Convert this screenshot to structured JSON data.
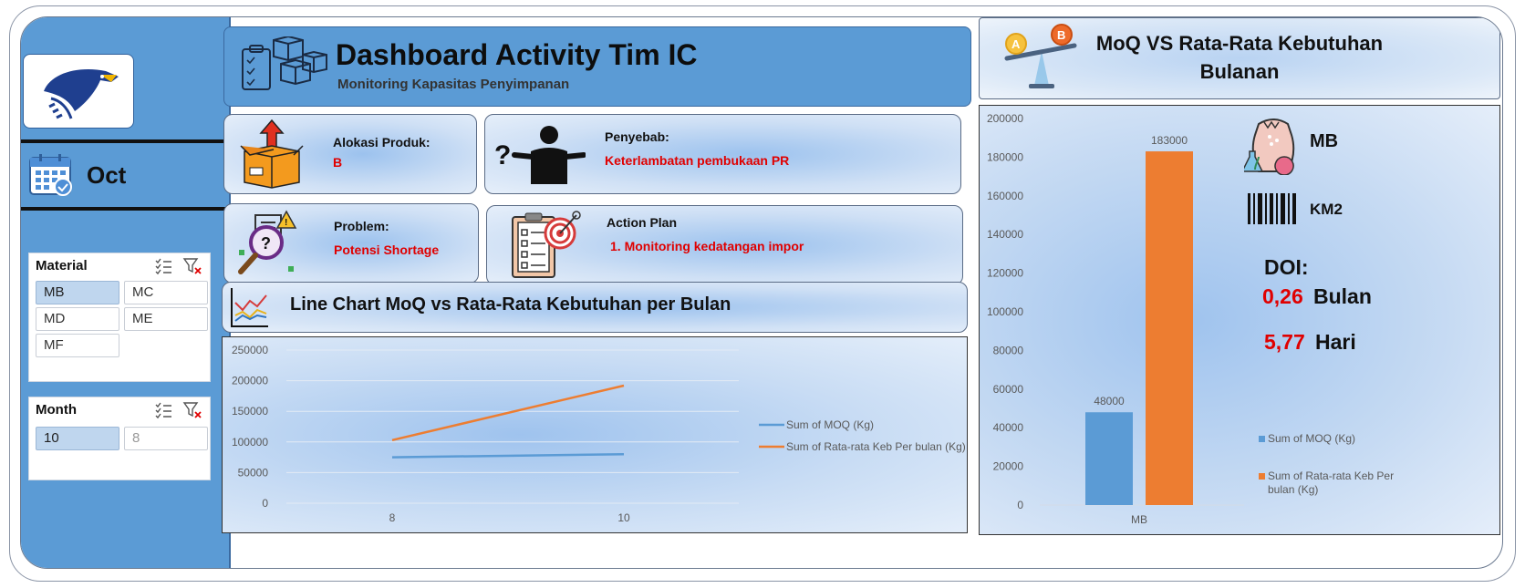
{
  "month": {
    "label": "Oct"
  },
  "slicers": {
    "material": {
      "title": "Material",
      "items": [
        "MB",
        "MC",
        "MD",
        "ME",
        "MF"
      ],
      "selected": "MB"
    },
    "month": {
      "title": "Month",
      "items": [
        "10",
        "8"
      ],
      "selected": "10"
    }
  },
  "header": {
    "title": "Dashboard Activity Tim IC",
    "subtitle": "Monitoring Kapasitas Penyimpanan"
  },
  "cards": {
    "alokasi": {
      "label": "Alokasi Produk:",
      "value": "B"
    },
    "penyebab": {
      "label": "Penyebab:",
      "value": "Keterlambatan pembukaan PR"
    },
    "problem": {
      "label": "Problem:",
      "value": "Potensi Shortage"
    },
    "action": {
      "label": "Action Plan",
      "value": "1. Monitoring kedatangan impor"
    }
  },
  "line_chart_title": "Line Chart MoQ vs Rata-Rata Kebutuhan per Bulan",
  "right_panel": {
    "title": "MoQ VS Rata-Rata Kebutuhan Bulanan",
    "material": "MB",
    "code": "KM2",
    "doi_label": "DOI:",
    "doi_bulan_value": "0,26",
    "doi_bulan_unit": "Bulan",
    "doi_hari_value": "5,77",
    "doi_hari_unit": "Hari"
  },
  "colors": {
    "blue": "#5b9bd5",
    "orange": "#ed7d31",
    "red": "#e00000"
  },
  "chart_data": [
    {
      "type": "line",
      "x": [
        "8",
        "10"
      ],
      "series": [
        {
          "name": "Sum of MOQ (Kg)",
          "values": [
            75000,
            80000
          ],
          "color": "#5b9bd5"
        },
        {
          "name": "Sum of Rata-rata Keb Per bulan (Kg)",
          "values": [
            103000,
            192000
          ],
          "color": "#ed7d31"
        }
      ],
      "yticks": [
        "0",
        "50000",
        "100000",
        "150000",
        "200000",
        "250000"
      ],
      "ylim": [
        0,
        250000
      ],
      "grid": true,
      "legend": "right"
    },
    {
      "type": "bar",
      "categories": [
        "MB"
      ],
      "series": [
        {
          "name": "Sum of MOQ (Kg)",
          "values": [
            48000
          ],
          "labels": [
            "48000"
          ],
          "color": "#5b9bd5"
        },
        {
          "name": "Sum of Rata-rata Keb Per bulan (Kg)",
          "values": [
            183000
          ],
          "labels": [
            "183000"
          ],
          "color": "#ed7d31"
        }
      ],
      "yticks": [
        "0",
        "20000",
        "40000",
        "60000",
        "80000",
        "100000",
        "120000",
        "140000",
        "160000",
        "180000",
        "200000"
      ],
      "ylim": [
        0,
        200000
      ],
      "legend": "right"
    }
  ]
}
